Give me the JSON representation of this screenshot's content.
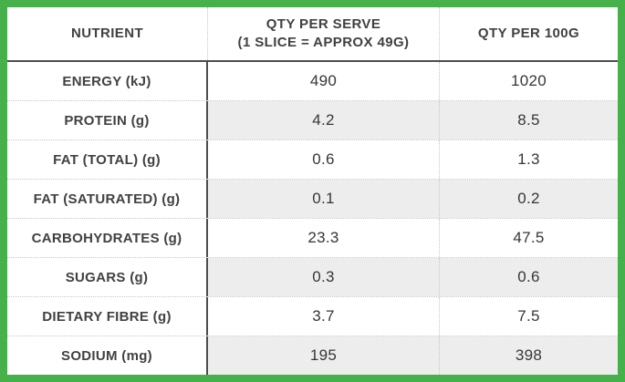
{
  "colors": {
    "border_green": "#46b14b",
    "header_line_dark": "#4c4d4f",
    "row_shade": "#ededed",
    "text_dark": "#414042",
    "dotted_line": "#c6c6c6"
  },
  "table": {
    "header": {
      "nutrient": "NUTRIENT",
      "per_serve": "QTY PER SERVE\n(1 SLICE = APPROX 49G)",
      "per_100g": "QTY PER 100G"
    },
    "rows": [
      {
        "nutrient": "ENERGY (kJ)",
        "per_serve": "490",
        "per_100g": "1020"
      },
      {
        "nutrient": "PROTEIN (g)",
        "per_serve": "4.2",
        "per_100g": "8.5"
      },
      {
        "nutrient": "FAT (TOTAL) (g)",
        "per_serve": "0.6",
        "per_100g": "1.3"
      },
      {
        "nutrient": "FAT (SATURATED) (g)",
        "per_serve": "0.1",
        "per_100g": "0.2"
      },
      {
        "nutrient": "CARBOHYDRATES (g)",
        "per_serve": "23.3",
        "per_100g": "47.5"
      },
      {
        "nutrient": "SUGARS (g)",
        "per_serve": "0.3",
        "per_100g": "0.6"
      },
      {
        "nutrient": "DIETARY FIBRE (g)",
        "per_serve": "3.7",
        "per_100g": "7.5"
      },
      {
        "nutrient": "SODIUM (mg)",
        "per_serve": "195",
        "per_100g": "398"
      }
    ]
  },
  "chart_data": {
    "type": "table",
    "title": "Nutrition information panel",
    "columns": [
      "NUTRIENT",
      "QTY PER SERVE (1 SLICE = APPROX 49G)",
      "QTY PER 100G"
    ],
    "rows": [
      [
        "ENERGY (kJ)",
        490,
        1020
      ],
      [
        "PROTEIN (g)",
        4.2,
        8.5
      ],
      [
        "FAT (TOTAL) (g)",
        0.6,
        1.3
      ],
      [
        "FAT (SATURATED) (g)",
        0.1,
        0.2
      ],
      [
        "CARBOHYDRATES (g)",
        23.3,
        47.5
      ],
      [
        "SUGARS (g)",
        0.3,
        0.6
      ],
      [
        "DIETARY FIBRE (g)",
        3.7,
        7.5
      ],
      [
        "SODIUM (mg)",
        195,
        398
      ]
    ],
    "layout_hints": {
      "shaded_row_indices": [
        1,
        3,
        5,
        7
      ],
      "frame_border": "thick green",
      "grid": "dotted row separators, solid line under header and right of nutrient column"
    }
  }
}
